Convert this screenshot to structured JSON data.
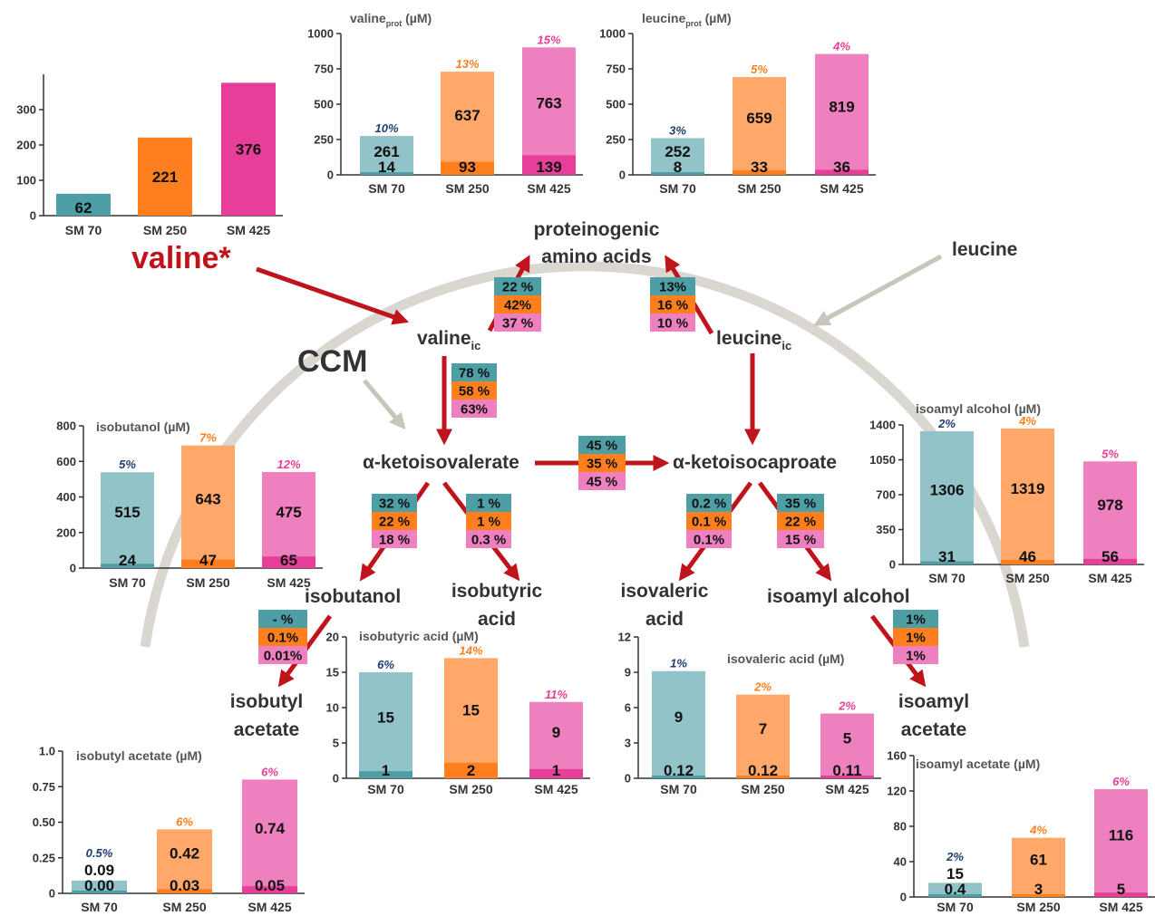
{
  "colors": {
    "teal": "#4e9ea6",
    "teal_light": "#92c3c9",
    "orange": "#ff7f1e",
    "orange_light": "#ffa86a",
    "pink": "#e73e99",
    "pink_light": "#ee80bf",
    "teal_text": "#1f3f73",
    "orange_text": "#ff7f1e",
    "pink_text": "#e73e99",
    "arrow_red": "#c0141c",
    "arrow_gray": "#c8c5bb",
    "arc_gray": "#d9d7d0",
    "valine_star": "#c0141c"
  },
  "categories": [
    "SM 70",
    "SM 250",
    "SM 425"
  ],
  "nodes": {
    "valine_star": "valine*",
    "proteinogenic_line1": "proteinogenic",
    "proteinogenic_line2": "amino acids",
    "leucine": "leucine",
    "ccm": "CCM",
    "valine_ic": "valine",
    "valine_ic_sub": "ic",
    "leucine_ic": "leucine",
    "leucine_ic_sub": "ic",
    "kiv": "α-ketoisovalerate",
    "kic": "α-ketoisocaproate",
    "isobutanol": "isobutanol",
    "isobutyric_line1": "isobutyric",
    "isobutyric_line2": "acid",
    "isovaleric_line1": "isovaleric",
    "isovaleric_line2": "acid",
    "isoamyl_alcohol": "isoamyl alcohol",
    "isobutyl_acetate_line1": "isobutyl",
    "isobutyl_acetate_line2": "acetate",
    "isoamyl_acetate_line1": "isoamyl",
    "isoamyl_acetate_line2": "acetate"
  },
  "flux_boxes": [
    {
      "id": "val-to-prot",
      "values": [
        "22 %",
        "42%",
        "37 %"
      ]
    },
    {
      "id": "leu-to-prot",
      "values": [
        "13%",
        "16 %",
        "10 %"
      ]
    },
    {
      "id": "val-to-kiv",
      "values": [
        "78 %",
        "58 %",
        "63%"
      ]
    },
    {
      "id": "kiv-to-kic",
      "values": [
        "45 %",
        "35 %",
        "45 %"
      ]
    },
    {
      "id": "kiv-to-isobutanol",
      "values": [
        "32 %",
        "22 %",
        "18 %"
      ]
    },
    {
      "id": "kiv-to-isobutyric",
      "values": [
        "1 %",
        "1 %",
        "0.3 %"
      ]
    },
    {
      "id": "kic-to-isovaleric",
      "values": [
        "0.2 %",
        "0.1 %",
        "0.1%"
      ]
    },
    {
      "id": "kic-to-isoamyl",
      "values": [
        "35 %",
        "22 %",
        "15 %"
      ]
    },
    {
      "id": "isobutanol-to-acetate",
      "values": [
        "- %",
        "0.1%",
        "0.01%"
      ]
    },
    {
      "id": "isoamyl-to-acetate",
      "values": [
        "1%",
        "1%",
        "1%"
      ]
    }
  ],
  "chart_data": [
    {
      "id": "valine-uptake",
      "type": "bar",
      "title": "",
      "title_sub": "",
      "title_tail": "",
      "categories": [
        "SM 70",
        "SM 250",
        "SM 425"
      ],
      "ylim": [
        0,
        400
      ],
      "yticks": [
        0,
        100,
        200,
        300
      ],
      "ytick_labels": [
        "0",
        "100",
        "200",
        "300"
      ],
      "totals": [
        62,
        221,
        376
      ],
      "total_labels": [
        "62",
        "221",
        "376"
      ],
      "bottoms": null,
      "bottom_labels": null,
      "percents": null
    },
    {
      "id": "valine-prot",
      "type": "bar",
      "title": "valine",
      "title_sub": "prot",
      "title_tail": " (µM)",
      "categories": [
        "SM 70",
        "SM 250",
        "SM 425"
      ],
      "ylim": [
        0,
        1000
      ],
      "yticks": [
        0,
        250,
        500,
        750,
        1000
      ],
      "ytick_labels": [
        "0",
        "250",
        "500",
        "750",
        "1000"
      ],
      "totals": [
        275,
        730,
        902
      ],
      "total_labels": [
        "261",
        "637",
        "763"
      ],
      "bottoms": [
        14,
        93,
        139
      ],
      "bottom_labels": [
        "14",
        "93",
        "139"
      ],
      "percents": [
        "10%",
        "13%",
        "15%"
      ]
    },
    {
      "id": "leucine-prot",
      "type": "bar",
      "title": "leucine",
      "title_sub": "prot",
      "title_tail": " (µM)",
      "categories": [
        "SM 70",
        "SM 250",
        "SM 425"
      ],
      "ylim": [
        0,
        1000
      ],
      "yticks": [
        0,
        250,
        500,
        750,
        1000
      ],
      "ytick_labels": [
        "0",
        "250",
        "500",
        "750",
        "1000"
      ],
      "totals": [
        260,
        692,
        855
      ],
      "total_labels": [
        "252",
        "659",
        "819"
      ],
      "bottoms": [
        8,
        33,
        36
      ],
      "bottom_labels": [
        "8",
        "33",
        "36"
      ],
      "percents": [
        "3%",
        "5%",
        "4%"
      ]
    },
    {
      "id": "isobutanol",
      "type": "bar",
      "title": "isobutanol",
      "title_sub": "",
      "title_tail": " (µM)",
      "categories": [
        "SM 70",
        "SM 250",
        "SM 425"
      ],
      "ylim": [
        0,
        800
      ],
      "yticks": [
        0,
        200,
        400,
        600,
        800
      ],
      "ytick_labels": [
        "0",
        "200",
        "400",
        "600",
        "800"
      ],
      "totals": [
        539,
        690,
        540
      ],
      "total_labels": [
        "515",
        "643",
        "475"
      ],
      "bottoms": [
        24,
        47,
        65
      ],
      "bottom_labels": [
        "24",
        "47",
        "65"
      ],
      "percents": [
        "5%",
        "7%",
        "12%"
      ]
    },
    {
      "id": "isoamyl-alcohol",
      "type": "bar",
      "title": "isoamyl alcohol",
      "title_sub": "",
      "title_tail": " (µM)",
      "categories": [
        "SM 70",
        "SM 250",
        "SM 425"
      ],
      "ylim": [
        0,
        1400
      ],
      "yticks": [
        0,
        350,
        700,
        1050,
        1400
      ],
      "ytick_labels": [
        "0",
        "350",
        "700",
        "1050",
        "1400"
      ],
      "totals": [
        1337,
        1365,
        1034
      ],
      "total_labels": [
        "1306",
        "1319",
        "978"
      ],
      "bottoms": [
        31,
        46,
        56
      ],
      "bottom_labels": [
        "31",
        "46",
        "56"
      ],
      "percents": [
        "2%",
        "4%",
        "5%"
      ]
    },
    {
      "id": "isobutyric-acid",
      "type": "bar",
      "title": "isobutyric acid",
      "title_sub": "",
      "title_tail": " (µM)",
      "categories": [
        "SM 70",
        "SM 250",
        "SM 425"
      ],
      "ylim": [
        0,
        20
      ],
      "yticks": [
        0,
        5,
        10,
        15,
        20
      ],
      "ytick_labels": [
        "0",
        "5",
        "10",
        "15",
        "20"
      ],
      "totals": [
        15,
        17,
        10.8
      ],
      "total_labels": [
        "15",
        "15",
        "9"
      ],
      "bottoms": [
        1,
        2.2,
        1.3
      ],
      "bottom_labels": [
        "1",
        "2",
        "1"
      ],
      "percents": [
        "6%",
        "14%",
        "11%"
      ]
    },
    {
      "id": "isovaleric-acid",
      "type": "bar",
      "title": "isovaleric acid",
      "title_sub": "",
      "title_tail": " (µM)",
      "categories": [
        "SM 70",
        "SM 250",
        "SM 425"
      ],
      "ylim": [
        0,
        12
      ],
      "yticks": [
        0,
        3,
        6,
        9,
        12
      ],
      "ytick_labels": [
        "0",
        "3",
        "6",
        "9",
        "12"
      ],
      "totals": [
        9.1,
        7.1,
        5.5
      ],
      "total_labels": [
        "9",
        "7",
        "5"
      ],
      "bottoms": [
        0.12,
        0.12,
        0.11
      ],
      "bottom_labels": [
        "0.12",
        "0.12",
        "0.11"
      ],
      "percents": [
        "1%",
        "2%",
        "2%"
      ]
    },
    {
      "id": "isobutyl-acetate",
      "type": "bar",
      "title": "isobutyl acetate",
      "title_sub": "",
      "title_tail": " (µM)",
      "categories": [
        "SM 70",
        "SM 250",
        "SM 425"
      ],
      "ylim": [
        0,
        1.0
      ],
      "yticks": [
        0,
        0.25,
        0.5,
        0.75,
        1.0
      ],
      "ytick_labels": [
        "0",
        "0.25",
        "0.50",
        "0.75",
        "1.0"
      ],
      "totals": [
        0.09,
        0.45,
        0.8
      ],
      "total_labels": [
        "0.09",
        "0.42",
        "0.74"
      ],
      "bottoms": [
        0.0,
        0.03,
        0.05
      ],
      "bottom_labels": [
        "0.00",
        "0.03",
        "0.05"
      ],
      "percents": [
        "0.5%",
        "6%",
        "6%"
      ]
    },
    {
      "id": "isoamyl-acetate",
      "type": "bar",
      "title": "isoamyl acetate",
      "title_sub": "",
      "title_tail": " (µM)",
      "categories": [
        "SM 70",
        "SM 250",
        "SM 425"
      ],
      "ylim": [
        0,
        160
      ],
      "yticks": [
        0,
        40,
        80,
        120,
        160
      ],
      "ytick_labels": [
        "0",
        "40",
        "80",
        "120",
        "160"
      ],
      "totals": [
        16,
        67,
        122
      ],
      "total_labels": [
        "15",
        "61",
        "116"
      ],
      "bottoms": [
        0.4,
        3,
        5
      ],
      "bottom_labels": [
        "0.4",
        "3",
        "5"
      ],
      "percents": [
        "2%",
        "4%",
        "6%"
      ]
    }
  ]
}
